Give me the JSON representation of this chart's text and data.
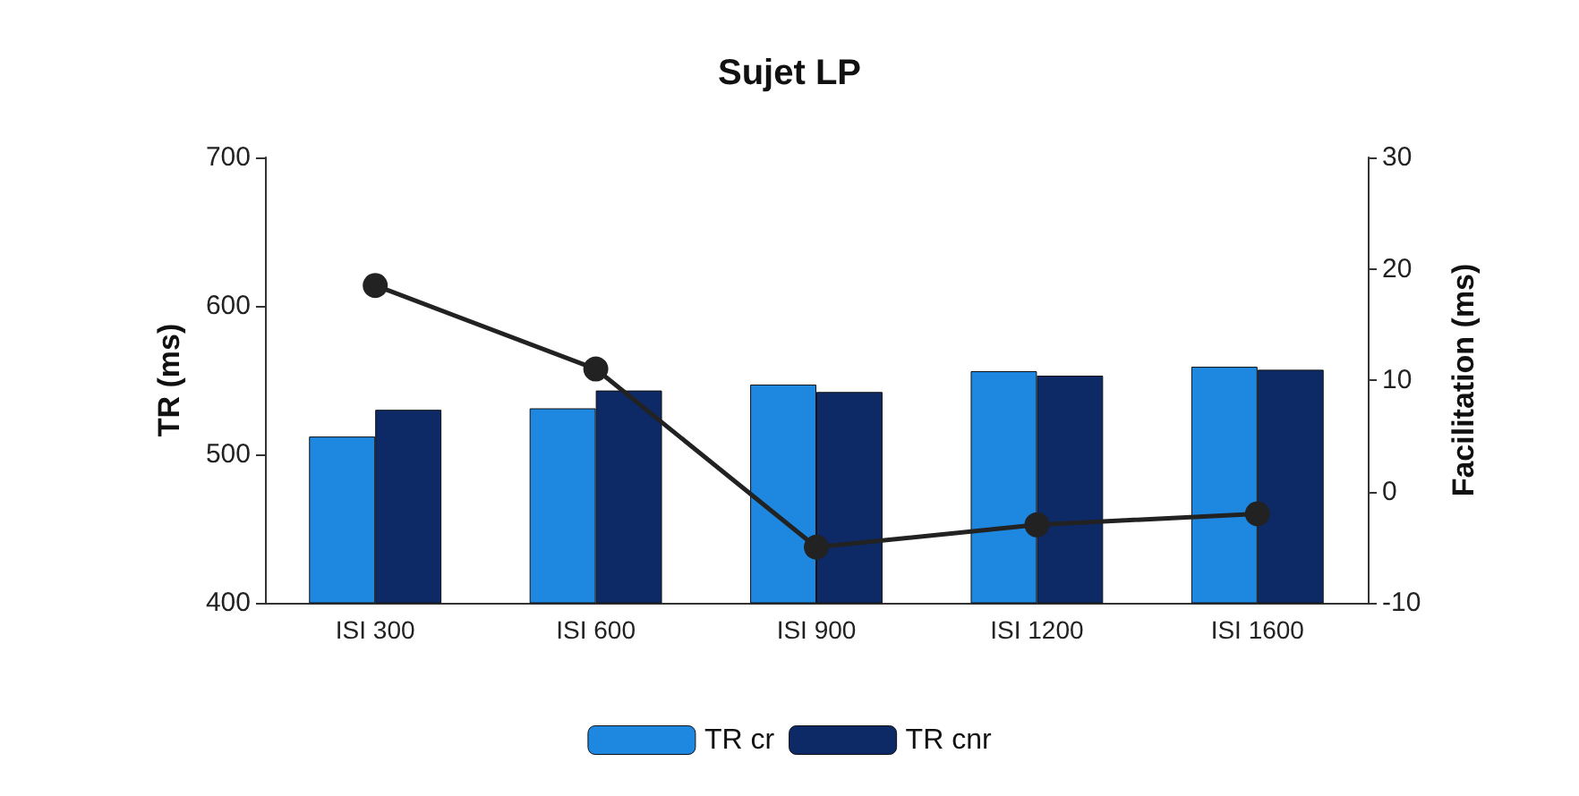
{
  "chart_data": {
    "type": "bar",
    "title": "Sujet LP",
    "ylabel": "TR (ms)",
    "y2label": "Facilitation (ms)",
    "categories": [
      "ISI 300",
      "ISI 600",
      "ISI 900",
      "ISI 1200",
      "ISI 1600"
    ],
    "series": [
      {
        "name": "TR cr",
        "color": "#1e88e0",
        "values": [
          512,
          531,
          547,
          556,
          559
        ]
      },
      {
        "name": "TR cnr",
        "color": "#0d2a66",
        "values": [
          530,
          543,
          542,
          553,
          557
        ]
      },
      {
        "type": "line",
        "axis": "y2",
        "color": "#222222",
        "values": [
          18.5,
          11,
          -5,
          -3,
          -2
        ],
        "marker": "circle"
      }
    ],
    "ylim": [
      400,
      700
    ],
    "yticks": [
      400,
      500,
      600,
      700
    ],
    "y2lim": [
      -10,
      30
    ],
    "y2ticks": [
      -10,
      0,
      10,
      20,
      30
    ],
    "grid": false,
    "legend": "bottom"
  }
}
